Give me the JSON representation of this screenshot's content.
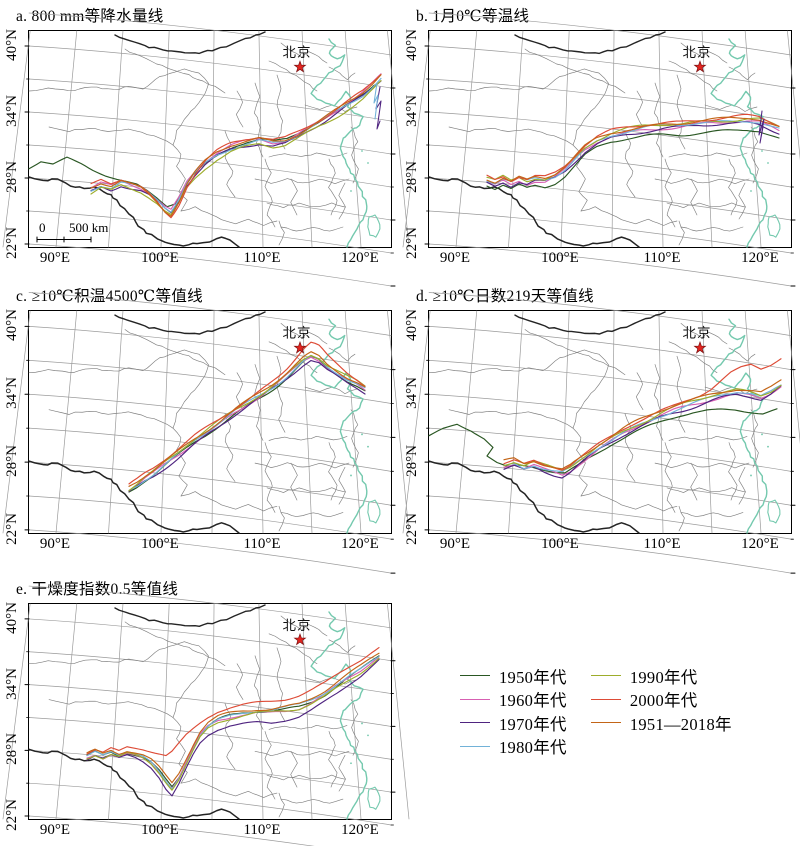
{
  "panels": [
    {
      "id": "a",
      "label": "a. 800 mm等降水量线"
    },
    {
      "id": "b",
      "label": "b. 1月0℃等温线"
    },
    {
      "id": "c",
      "label": "c. ≥10℃积温4500℃等值线"
    },
    {
      "id": "d",
      "label": "d. ≥10℃日数219天等值线"
    },
    {
      "id": "e",
      "label": "e. 干燥度指数0.5等值线"
    }
  ],
  "axes": {
    "y_ticks": [
      "40°N",
      "34°N",
      "28°N",
      "22°N"
    ],
    "x_ticks": [
      "90°E",
      "100°E",
      "110°E",
      "120°E"
    ]
  },
  "map": {
    "beijing_label": "北京",
    "scale_zero": "0",
    "scale_text": "500 km"
  },
  "legend": {
    "items": [
      {
        "label": "1950年代",
        "color": "#2a5723"
      },
      {
        "label": "1960年代",
        "color": "#d760b2"
      },
      {
        "label": "1970年代",
        "color": "#4f2480"
      },
      {
        "label": "1980年代",
        "color": "#72b2d8"
      },
      {
        "label": "1990年代",
        "color": "#9dad2b"
      },
      {
        "label": "2000年代",
        "color": "#dd4b36"
      },
      {
        "label": "1951—2018年",
        "color": "#c36517"
      }
    ]
  },
  "colors": {
    "graticule": "#9b9b9b",
    "province": "#7f7f7f",
    "boundary": "#242424",
    "coastline": "#74c9ae",
    "star": "#e3251f",
    "frame": "#000000"
  }
}
